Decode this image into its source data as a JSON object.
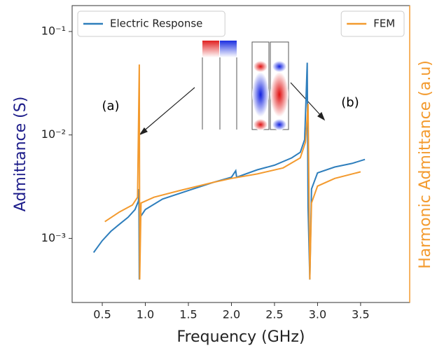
{
  "chart_data": {
    "type": "line",
    "xlabel": "Frequency (GHz)",
    "ylabel": "Admittance (S)",
    "y2label": "Harmonic Admittance (a.u)",
    "ylog": true,
    "y2log": true,
    "xlim": [
      0.15,
      4.07
    ],
    "ylim": [
      0.00024,
      0.178
    ],
    "y2lim": [
      0.00024,
      0.178
    ],
    "xticks": [
      0.5,
      {
        "value": 1,
        "label": "1.0"
      },
      1.5,
      {
        "value": 2,
        "label": "2.0"
      },
      2.5,
      {
        "value": 3,
        "label": "3.0"
      },
      3.5
    ],
    "yticks": [
      {
        "value": 0.001,
        "label": "10⁻³"
      },
      {
        "value": 0.01,
        "label": "10⁻²"
      },
      {
        "value": 0.1,
        "label": "10⁻¹"
      }
    ],
    "annotations": [
      "(a)",
      "(b)"
    ],
    "series": [
      {
        "name": "Electric Response",
        "color": "#2e7ebc",
        "legend": "upper left",
        "x": [
          0.4,
          0.5,
          0.6,
          0.7,
          0.8,
          0.88,
          0.92,
          0.925,
          0.93,
          0.94,
          1.0,
          1.2,
          1.5,
          1.8,
          2.0,
          2.05,
          2.06,
          2.3,
          2.5,
          2.7,
          2.8,
          2.85,
          2.88,
          2.89,
          2.91,
          2.93,
          3.0,
          3.2,
          3.4,
          3.55
        ],
        "values": [
          0.00073,
          0.00095,
          0.00117,
          0.00137,
          0.0016,
          0.0019,
          0.0023,
          0.003,
          0.0004,
          0.0016,
          0.0019,
          0.0024,
          0.0029,
          0.0035,
          0.0039,
          0.0045,
          0.0039,
          0.0046,
          0.0051,
          0.006,
          0.0068,
          0.009,
          0.05,
          0.002,
          0.0004,
          0.003,
          0.0043,
          0.0049,
          0.0053,
          0.0058
        ]
      },
      {
        "name": "FEM",
        "color": "#f39a2e",
        "axis": "y2",
        "legend": "upper right",
        "x": [
          0.53,
          0.7,
          0.85,
          0.91,
          0.93,
          0.935,
          0.95,
          1.1,
          1.4,
          1.8,
          2.0,
          2.3,
          2.6,
          2.8,
          2.86,
          2.89,
          2.9,
          2.91,
          2.93,
          3.0,
          3.2,
          3.5
        ],
        "values": [
          0.00145,
          0.0018,
          0.0021,
          0.0025,
          0.048,
          0.0004,
          0.0022,
          0.0025,
          0.0029,
          0.0035,
          0.0038,
          0.0042,
          0.0048,
          0.006,
          0.0085,
          0.02,
          0.003,
          0.0004,
          0.0022,
          0.0032,
          0.0038,
          0.0044
        ]
      }
    ]
  }
}
